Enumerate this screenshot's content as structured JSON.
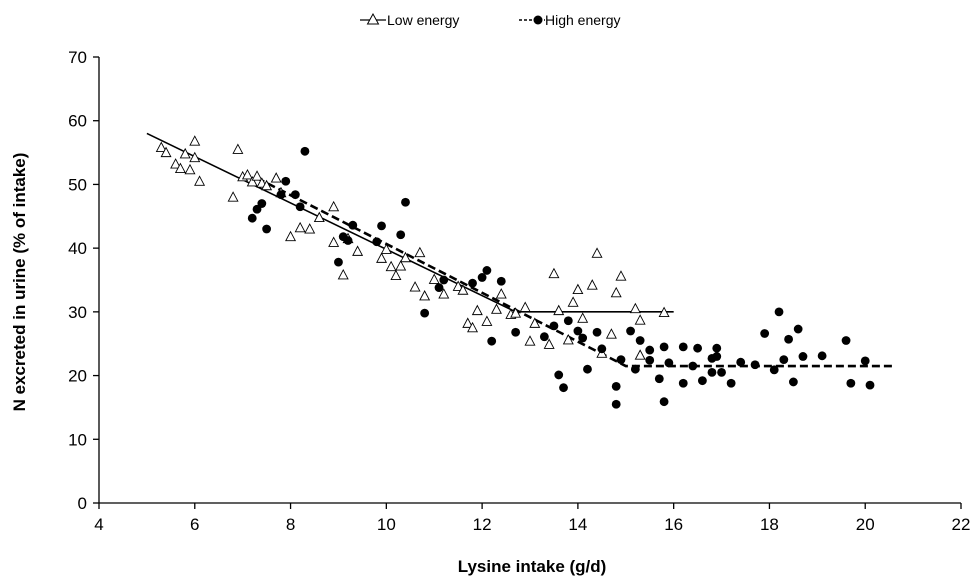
{
  "chart_data": {
    "type": "scatter",
    "xlabel": "Lysine intake (g/d)",
    "ylabel": "N excreted in urine (% of intake)",
    "xlim": [
      4,
      22
    ],
    "ylim": [
      0,
      70
    ],
    "xticks": [
      4,
      6,
      8,
      10,
      12,
      14,
      16,
      18,
      20,
      22
    ],
    "yticks": [
      0,
      10,
      20,
      30,
      40,
      50,
      60,
      70
    ],
    "grid": false,
    "legend_position": "top-center",
    "series": [
      {
        "name": "Low energy",
        "marker": "open-triangle",
        "line_style": "solid",
        "color": "#000000",
        "points": [
          [
            5.3,
            55.8
          ],
          [
            5.4,
            55.0
          ],
          [
            5.6,
            53.2
          ],
          [
            5.7,
            52.5
          ],
          [
            5.8,
            54.8
          ],
          [
            5.9,
            52.3
          ],
          [
            6.0,
            54.2
          ],
          [
            6.0,
            56.8
          ],
          [
            6.1,
            50.5
          ],
          [
            6.8,
            48.0
          ],
          [
            6.9,
            55.5
          ],
          [
            7.0,
            51.2
          ],
          [
            7.1,
            51.5
          ],
          [
            7.2,
            50.4
          ],
          [
            7.3,
            51.3
          ],
          [
            7.4,
            50.2
          ],
          [
            7.5,
            49.8
          ],
          [
            7.7,
            51.0
          ],
          [
            7.8,
            48.7
          ],
          [
            8.0,
            41.8
          ],
          [
            8.2,
            43.2
          ],
          [
            8.4,
            43.0
          ],
          [
            8.6,
            44.8
          ],
          [
            8.9,
            46.5
          ],
          [
            8.9,
            40.9
          ],
          [
            9.1,
            35.8
          ],
          [
            9.2,
            41.5
          ],
          [
            9.4,
            39.5
          ],
          [
            9.9,
            38.4
          ],
          [
            10.0,
            39.8
          ],
          [
            10.1,
            37.1
          ],
          [
            10.2,
            35.7
          ],
          [
            10.3,
            37.2
          ],
          [
            10.4,
            38.5
          ],
          [
            10.6,
            33.9
          ],
          [
            10.7,
            39.3
          ],
          [
            10.8,
            32.5
          ],
          [
            11.0,
            35.1
          ],
          [
            11.2,
            32.8
          ],
          [
            11.5,
            34.0
          ],
          [
            11.6,
            33.4
          ],
          [
            11.7,
            28.2
          ],
          [
            11.8,
            27.5
          ],
          [
            11.9,
            30.2
          ],
          [
            12.1,
            28.5
          ],
          [
            12.3,
            30.4
          ],
          [
            12.4,
            32.8
          ],
          [
            12.6,
            29.6
          ],
          [
            12.7,
            29.8
          ],
          [
            12.9,
            30.7
          ],
          [
            13.0,
            25.4
          ],
          [
            13.1,
            28.2
          ],
          [
            13.4,
            24.9
          ],
          [
            13.5,
            36.0
          ],
          [
            13.6,
            30.2
          ],
          [
            13.8,
            25.6
          ],
          [
            13.9,
            31.5
          ],
          [
            14.0,
            33.5
          ],
          [
            14.1,
            29.0
          ],
          [
            14.3,
            34.2
          ],
          [
            14.4,
            39.2
          ],
          [
            14.5,
            23.5
          ],
          [
            14.7,
            26.5
          ],
          [
            14.8,
            33.0
          ],
          [
            14.9,
            35.6
          ],
          [
            15.2,
            30.5
          ],
          [
            15.3,
            23.2
          ],
          [
            15.3,
            28.7
          ],
          [
            15.8,
            29.9
          ]
        ],
        "fit": [
          [
            5.0,
            58.0
          ],
          [
            12.7,
            30.0
          ],
          [
            16.0,
            30.0
          ]
        ]
      },
      {
        "name": "High energy",
        "marker": "filled-circle",
        "line_style": "dashed",
        "color": "#000000",
        "points": [
          [
            7.2,
            44.7
          ],
          [
            7.3,
            46.1
          ],
          [
            7.4,
            47.0
          ],
          [
            7.5,
            43.0
          ],
          [
            7.8,
            48.4
          ],
          [
            7.9,
            50.5
          ],
          [
            8.1,
            48.4
          ],
          [
            8.2,
            46.5
          ],
          [
            8.3,
            55.2
          ],
          [
            9.0,
            37.8
          ],
          [
            9.1,
            41.8
          ],
          [
            9.2,
            41.2
          ],
          [
            9.3,
            43.6
          ],
          [
            9.8,
            41.0
          ],
          [
            9.9,
            43.5
          ],
          [
            10.3,
            42.1
          ],
          [
            10.4,
            47.2
          ],
          [
            10.8,
            29.8
          ],
          [
            11.1,
            33.8
          ],
          [
            11.2,
            35.0
          ],
          [
            11.8,
            34.5
          ],
          [
            12.0,
            35.4
          ],
          [
            12.1,
            36.5
          ],
          [
            12.2,
            25.4
          ],
          [
            12.4,
            34.8
          ],
          [
            12.7,
            26.8
          ],
          [
            13.3,
            26.1
          ],
          [
            13.5,
            27.8
          ],
          [
            13.6,
            20.1
          ],
          [
            13.7,
            18.1
          ],
          [
            13.8,
            28.6
          ],
          [
            14.0,
            27.0
          ],
          [
            14.1,
            25.9
          ],
          [
            14.2,
            21.0
          ],
          [
            14.4,
            26.8
          ],
          [
            14.5,
            24.2
          ],
          [
            14.8,
            18.3
          ],
          [
            14.8,
            15.5
          ],
          [
            14.9,
            22.5
          ],
          [
            15.1,
            27.0
          ],
          [
            15.2,
            21.0
          ],
          [
            15.3,
            25.5
          ],
          [
            15.5,
            22.4
          ],
          [
            15.5,
            24.0
          ],
          [
            15.7,
            19.5
          ],
          [
            15.8,
            15.9
          ],
          [
            15.8,
            24.5
          ],
          [
            15.9,
            22.0
          ],
          [
            16.2,
            18.8
          ],
          [
            16.2,
            24.5
          ],
          [
            16.4,
            21.5
          ],
          [
            16.5,
            24.3
          ],
          [
            16.6,
            19.2
          ],
          [
            16.8,
            22.7
          ],
          [
            16.8,
            20.5
          ],
          [
            16.9,
            24.3
          ],
          [
            16.9,
            23.0
          ],
          [
            17.0,
            20.5
          ],
          [
            17.2,
            18.8
          ],
          [
            17.4,
            22.1
          ],
          [
            17.7,
            21.7
          ],
          [
            17.9,
            26.6
          ],
          [
            18.1,
            20.9
          ],
          [
            18.2,
            30.0
          ],
          [
            18.3,
            22.5
          ],
          [
            18.4,
            25.7
          ],
          [
            18.5,
            19.0
          ],
          [
            18.6,
            27.3
          ],
          [
            18.7,
            23.0
          ],
          [
            19.1,
            23.1
          ],
          [
            19.6,
            25.5
          ],
          [
            19.7,
            18.8
          ],
          [
            20.0,
            22.3
          ],
          [
            20.1,
            18.5
          ]
        ],
        "fit": [
          [
            7.3,
            51.0
          ],
          [
            15.0,
            21.5
          ],
          [
            20.6,
            21.5
          ]
        ]
      }
    ]
  }
}
